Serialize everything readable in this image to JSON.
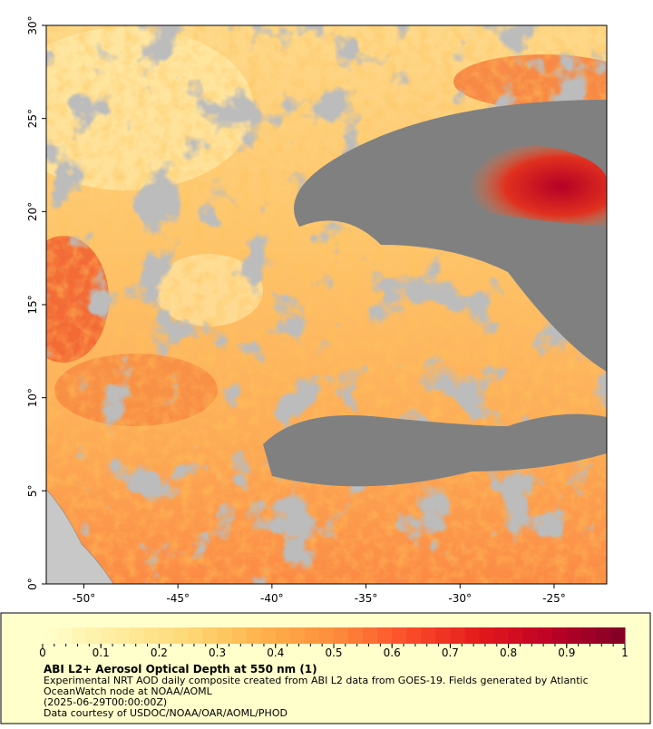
{
  "map": {
    "xlim": [
      -52,
      -22.2
    ],
    "ylim": [
      0,
      30
    ],
    "xticks": [
      {
        "value": -50,
        "label": "-50°"
      },
      {
        "value": -45,
        "label": "-45°"
      },
      {
        "value": -40,
        "label": "-40°"
      },
      {
        "value": -35,
        "label": "-35°"
      },
      {
        "value": -30,
        "label": "-30°"
      },
      {
        "value": -25,
        "label": "-25°"
      }
    ],
    "yticks": [
      {
        "value": 0,
        "label": "0°"
      },
      {
        "value": 5,
        "label": "5°"
      },
      {
        "value": 10,
        "label": "10°"
      },
      {
        "value": 15,
        "label": "15°"
      },
      {
        "value": 20,
        "label": "20°"
      },
      {
        "value": 25,
        "label": "25°"
      },
      {
        "value": 30,
        "label": "30°"
      }
    ]
  },
  "colorbar": {
    "lim": [
      0,
      1
    ],
    "ticks": [
      0,
      0.1,
      0.2,
      0.3,
      0.4,
      0.5,
      0.6,
      0.7,
      0.8,
      0.9,
      1
    ],
    "colors": [
      "#ffffcc",
      "#ffeda0",
      "#fed976",
      "#feb24c",
      "#fd8d3c",
      "#fc4e2a",
      "#e31a1c",
      "#bd0026",
      "#800026"
    ]
  },
  "caption": {
    "title": "ABI L2+ Aerosol Optical Depth at 550 nm (1)",
    "lines": [
      "Experimental NRT AOD daily composite created from ABI L2 data from GOES-19. Fields generated by Atlantic",
      "OceanWatch node at NOAA/AOML",
      "(2025-06-29T00:00:00Z)",
      "Data courtesy of USDOC/NOAA/OAR/AOML/PHOD"
    ]
  }
}
